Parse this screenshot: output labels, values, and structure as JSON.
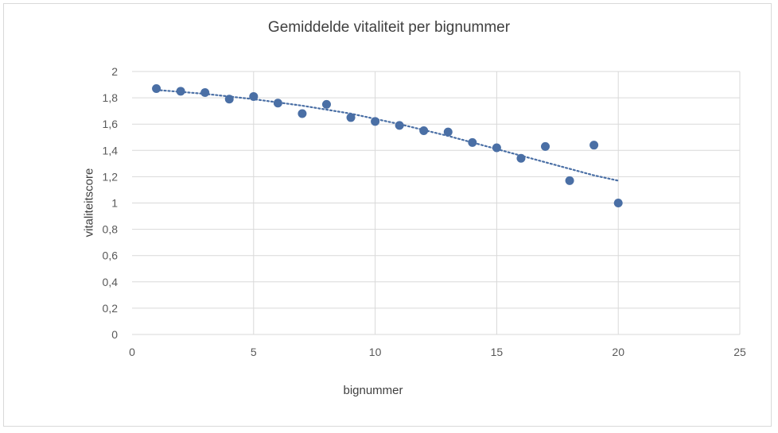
{
  "chart_data": {
    "type": "scatter",
    "title": "Gemiddelde vitaliteit per bignummer",
    "xlabel": "bignummer",
    "ylabel": "vitaliteitscore",
    "xlim": [
      0,
      25
    ],
    "ylim": [
      0,
      2
    ],
    "x_ticks": [
      0,
      5,
      10,
      15,
      20,
      25
    ],
    "y_ticks": [
      0,
      0.2,
      0.4,
      0.6,
      0.8,
      1,
      1.2,
      1.4,
      1.6,
      1.8,
      2
    ],
    "x_tick_labels": [
      "0",
      "5",
      "10",
      "15",
      "20",
      "25"
    ],
    "y_tick_labels": [
      "0",
      "0,2",
      "0,4",
      "0,6",
      "0,8",
      "1",
      "1,2",
      "1,4",
      "1,6",
      "1,8",
      "2"
    ],
    "grid": true,
    "series": [
      {
        "x": [
          1,
          2,
          3,
          4,
          5,
          6,
          7,
          8,
          9,
          10,
          11,
          12,
          13,
          14,
          15,
          16,
          17,
          18,
          19,
          20
        ],
        "y": [
          1.87,
          1.85,
          1.84,
          1.79,
          1.81,
          1.76,
          1.68,
          1.75,
          1.65,
          1.62,
          1.59,
          1.55,
          1.54,
          1.46,
          1.42,
          1.34,
          1.43,
          1.17,
          1.44,
          1.0
        ],
        "color": "#4a6fa5"
      }
    ],
    "trendline": {
      "type": "polynomial",
      "x": [
        1,
        3,
        5,
        7,
        9,
        11,
        13,
        15,
        17,
        19,
        20
      ],
      "y": [
        1.86,
        1.83,
        1.79,
        1.74,
        1.68,
        1.6,
        1.51,
        1.41,
        1.31,
        1.21,
        1.17
      ],
      "style": "dotted",
      "color": "#4a6fa5"
    }
  }
}
